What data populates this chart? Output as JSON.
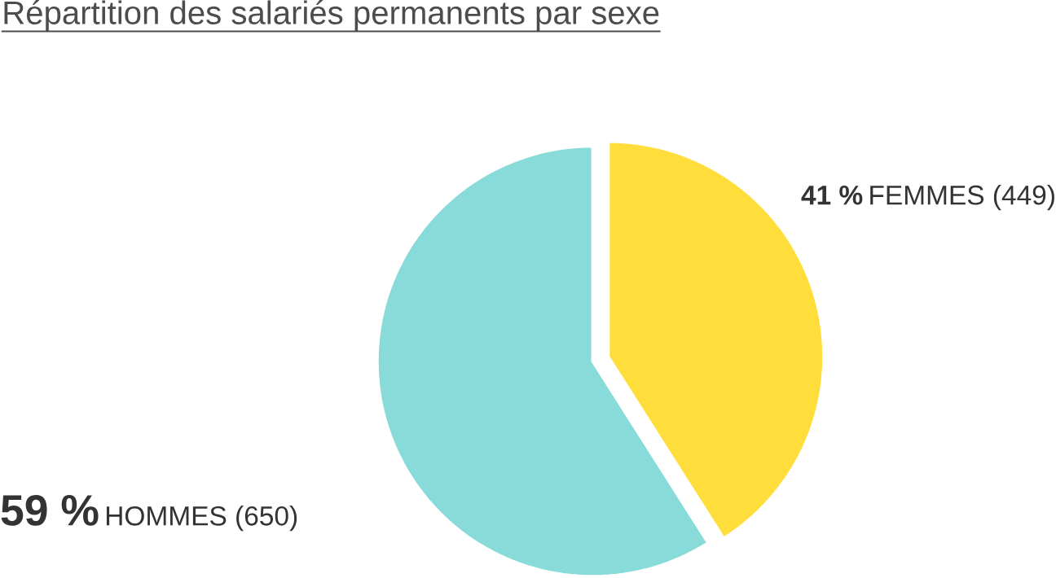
{
  "chart_data": {
    "type": "pie",
    "title": "Répartition des salariés permanents par sexe",
    "categories": [
      "FEMMES (449)",
      "HOMMES (650)"
    ],
    "values": [
      41,
      59
    ],
    "value_labels": [
      "41 %",
      "59 %"
    ],
    "colors": [
      "#ffde3b",
      "#88dbd9"
    ]
  }
}
